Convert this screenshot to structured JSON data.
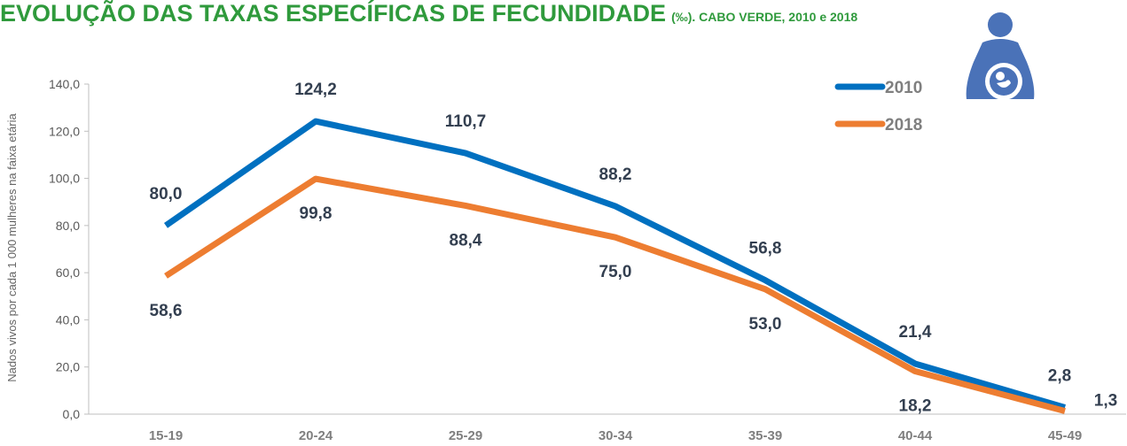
{
  "chart_data": {
    "type": "line",
    "title": "EVOLUÇÃO DAS TAXAS ESPECÍFICAS DE FECUNDIDADE",
    "subtitle": "(‰). CABO VERDE, 2010 e 2018",
    "y_label": "Nados vivos por cada 1 000 mulheres na faixa etária",
    "categories": [
      "15-19",
      "20-24",
      "25-29",
      "30-34",
      "35-39",
      "40-44",
      "45-49"
    ],
    "series": [
      {
        "name": "2010",
        "color": "#0070c0",
        "values": [
          80.0,
          124.2,
          110.7,
          88.2,
          56.8,
          21.4,
          2.8
        ],
        "value_labels": [
          "80,0",
          "124,2",
          "110,7",
          "88,2",
          "56,8",
          "21,4",
          "2,8"
        ]
      },
      {
        "name": "2018",
        "color": "#ed7d31",
        "values": [
          58.6,
          99.8,
          88.4,
          75.0,
          53.0,
          18.2,
          1.3
        ],
        "value_labels": [
          "58,6",
          "99,8",
          "88,4",
          "75,0",
          "53,0",
          "18,2",
          "1,3"
        ]
      }
    ],
    "ylim": [
      0,
      140
    ],
    "yticks": [
      {
        "value": 0,
        "label": "0,0"
      },
      {
        "value": 20,
        "label": "20,0"
      },
      {
        "value": 40,
        "label": "40,0"
      },
      {
        "value": 60,
        "label": "60,0"
      },
      {
        "value": 80,
        "label": "80,0"
      },
      {
        "value": 100,
        "label": "100,0"
      },
      {
        "value": 120,
        "label": "120,0"
      },
      {
        "value": 140,
        "label": "140,0"
      }
    ],
    "legend": "top-right"
  }
}
